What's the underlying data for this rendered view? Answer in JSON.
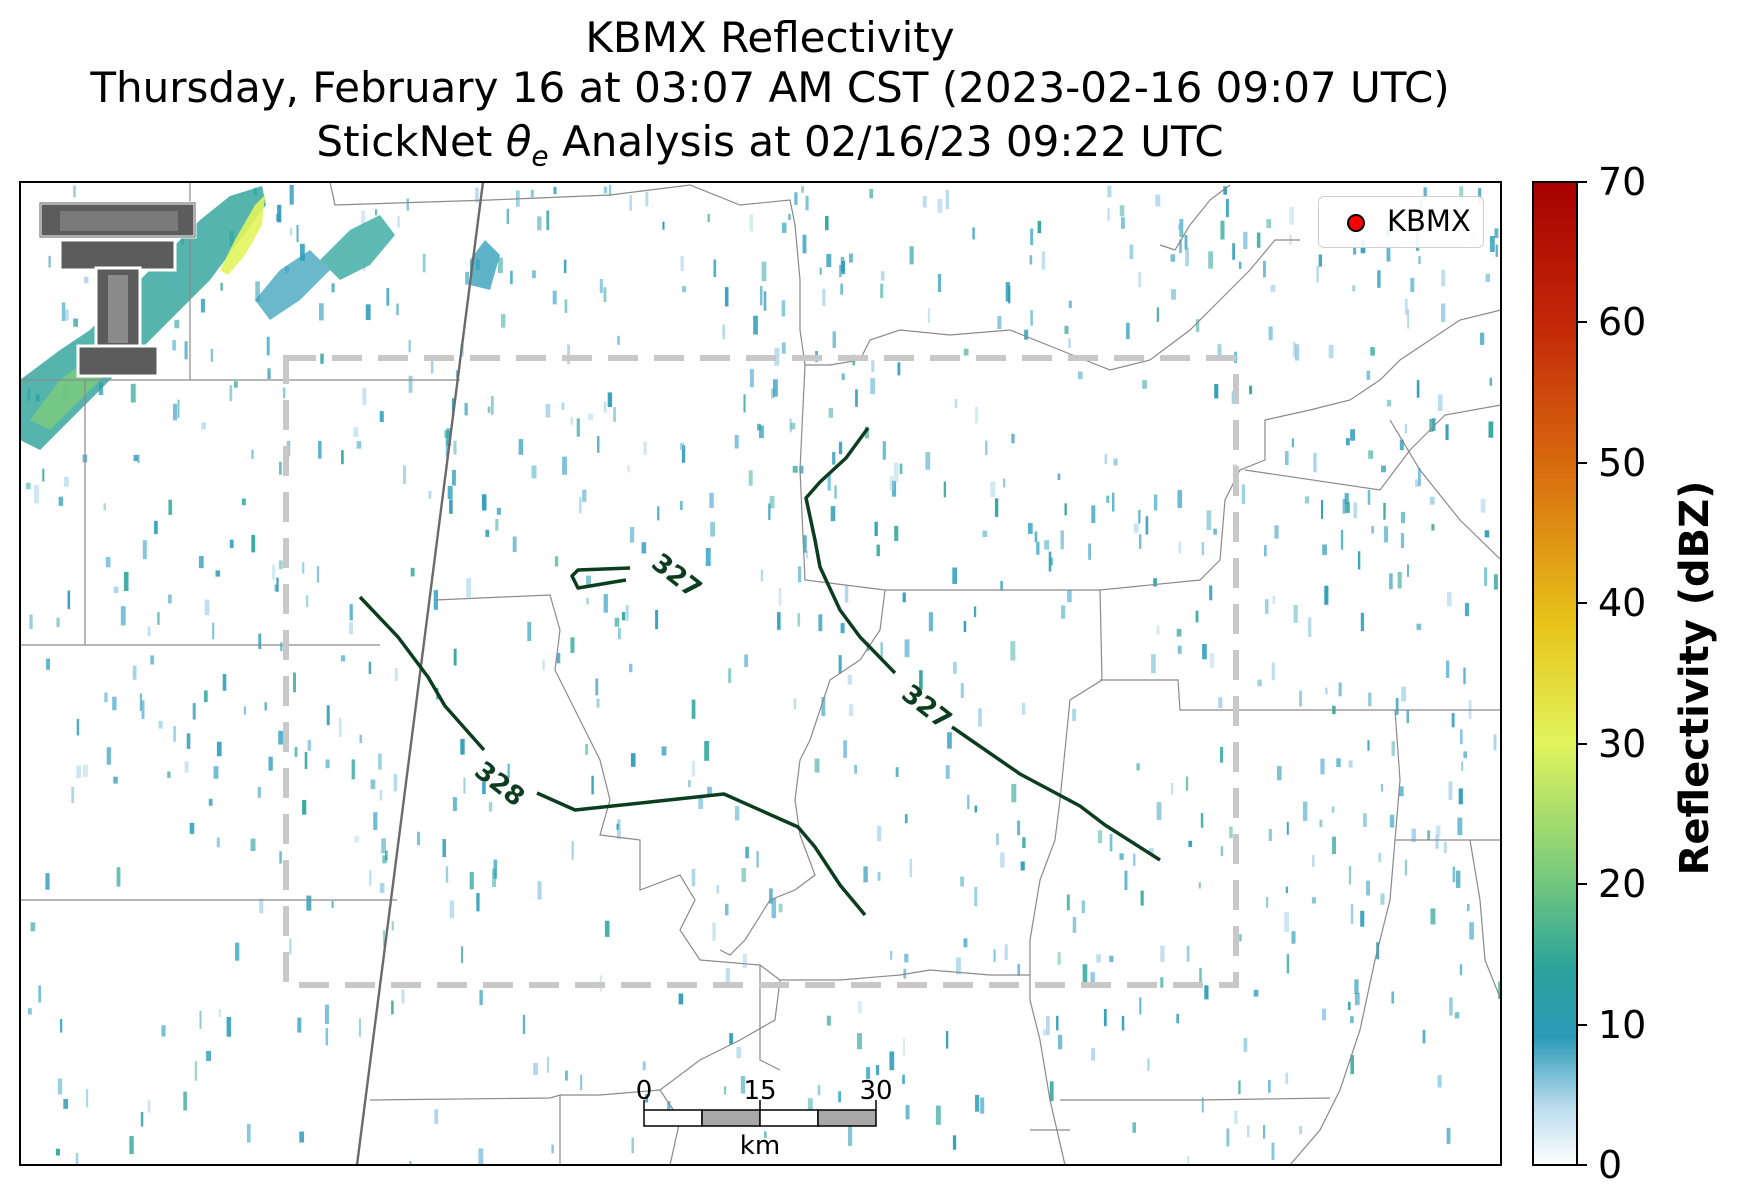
{
  "title": {
    "line1": "KBMX Reflectivity",
    "line2": "Thursday, February 16 at 03:07 AM CST (2023-02-16 09:07 UTC)",
    "line3_prefix": "StickNet ",
    "line3_symbol": "θ",
    "line3_subscript": "e",
    "line3_suffix": " Analysis at 02/16/23 09:22 UTC"
  },
  "legend": {
    "label": "KBMX",
    "marker_color": "#ff0000"
  },
  "colorbar": {
    "label": "Reflectivity (dBZ)",
    "ticks": [
      "0",
      "10",
      "20",
      "30",
      "40",
      "50",
      "60",
      "70"
    ],
    "colors": [
      "#ffffff",
      "#b9dbec",
      "#2a9ab7",
      "#2aa39a",
      "#7ccc7a",
      "#e2f45c",
      "#e7c41a",
      "#d9700f",
      "#c42a08",
      "#a80000"
    ]
  },
  "contours": {
    "color": "#0b3d1e",
    "labels": [
      "327",
      "327",
      "328"
    ]
  },
  "scale_bar": {
    "ticks": [
      "0",
      "15",
      "30"
    ],
    "unit": "km"
  },
  "logo": {
    "text": "T"
  }
}
